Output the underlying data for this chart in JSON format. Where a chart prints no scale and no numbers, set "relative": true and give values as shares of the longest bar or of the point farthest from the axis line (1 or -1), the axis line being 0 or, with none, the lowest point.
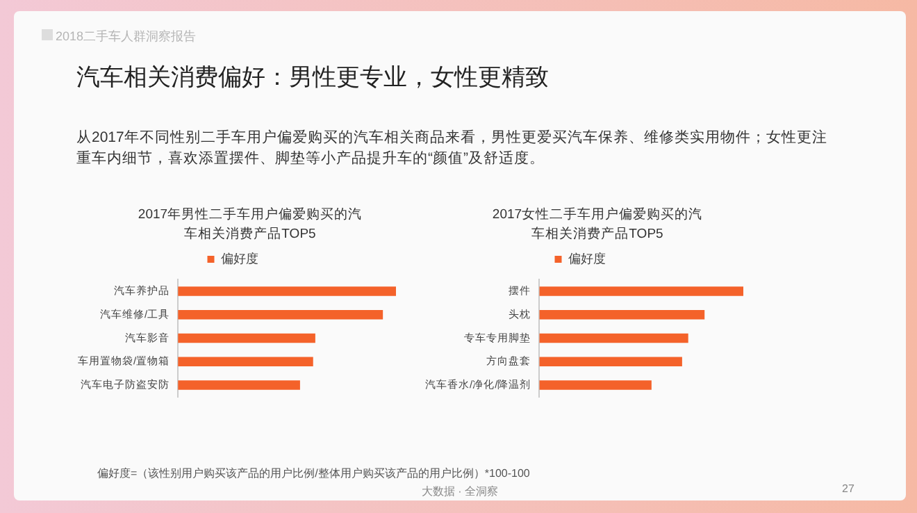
{
  "chart_data": [
    {
      "type": "bar",
      "orientation": "horizontal",
      "relative": true,
      "title": "2017年男性二手车用户偏爱购买的汽车相关消费产品TOP5",
      "categories": [
        "汽车养护品",
        "汽车维修/工具",
        "汽车影音",
        "车用置物袋/置物箱",
        "汽车电子防盗安防"
      ],
      "series": [
        {
          "name": "偏好度",
          "color": "#f4622a",
          "values": [
            1,
            0.94,
            0.63,
            0.62,
            0.56
          ]
        }
      ],
      "legend": "top",
      "grid": false,
      "annotations": [
        "2018二手车人群洞察报告",
        "汽车相关消费偏好：男性更专业，女性更精致",
        "从2017年不同性别二手车用户偏爱购买的汽车相关商品来看，男性更爱买汽车保养、维修类实用物件；女性更注重车内细节，喜欢添置摆件、脚垫等小产品提升车的“颜值”及舒适度。",
        "偏好度=（该性别用户购买该产品的用户比例/整体用户购买该产品的用户比例）*100-100",
        "大数据 · 全洞察",
        "27"
      ]
    },
    {
      "type": "bar",
      "orientation": "horizontal",
      "relative": true,
      "title": "2017女性二手车用户偏爱购买的汽车相关消费产品TOP5",
      "categories": [
        "摆件",
        "头枕",
        "专车专用脚垫",
        "方向盘套",
        "汽车香水/净化/降温剂"
      ],
      "series": [
        {
          "name": "偏好度",
          "color": "#f4622a",
          "values": [
            1,
            0.81,
            0.73,
            0.7,
            0.55
          ]
        }
      ],
      "legend": "top",
      "grid": false
    }
  ]
}
